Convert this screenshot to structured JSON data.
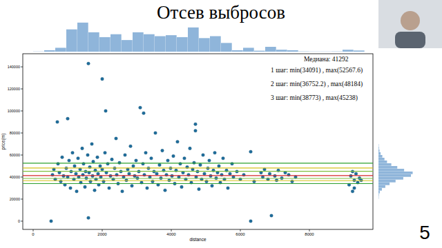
{
  "slide": {
    "number": "5"
  },
  "chart_data": {
    "type": "scatter",
    "title": "Отсев выбросов",
    "x_label": "distance",
    "y_label": "price(m)",
    "color": "#1f6d9b",
    "marker": "circle",
    "xlim": [
      -300,
      9840
    ],
    "ylim": [
      -7500,
      151900
    ],
    "xticks": [
      0,
      2000,
      4000,
      6000,
      8000
    ],
    "yticks": [
      0,
      20000,
      40000,
      60000,
      80000,
      100000,
      120000,
      140000
    ],
    "grid": false,
    "x": [
      520,
      560,
      600,
      640,
      700,
      720,
      760,
      800,
      840,
      880,
      920,
      960,
      1000,
      1000,
      1040,
      1080,
      1100,
      1140,
      1180,
      1200,
      1240,
      1260,
      1300,
      1320,
      1360,
      1380,
      1420,
      1440,
      1460,
      1500,
      1520,
      1540,
      1580,
      1600,
      1600,
      1620,
      1640,
      1660,
      1700,
      1720,
      1740,
      1780,
      1800,
      1820,
      1860,
      1880,
      1900,
      1940,
      1960,
      2000,
      2000,
      2040,
      2080,
      2100,
      2120,
      2160,
      2200,
      2240,
      2280,
      2320,
      2360,
      2400,
      2420,
      2460,
      2500,
      2540,
      2580,
      2620,
      2660,
      2700,
      2740,
      2780,
      2820,
      2860,
      2900,
      2940,
      2980,
      3020,
      3060,
      3100,
      3140,
      3180,
      3200,
      3220,
      3260,
      3300,
      3340,
      3380,
      3420,
      3460,
      3500,
      3540,
      3580,
      3620,
      3660,
      3700,
      3740,
      3780,
      3820,
      3860,
      3900,
      3940,
      3980,
      4020,
      4060,
      4100,
      4140,
      4180,
      4220,
      4260,
      4300,
      4340,
      4380,
      4420,
      4460,
      4500,
      4540,
      4580,
      4620,
      4660,
      4700,
      4700,
      4720,
      4760,
      4800,
      4840,
      4880,
      4920,
      4960,
      5020,
      5060,
      5100,
      5140,
      5180,
      5220,
      5260,
      5300,
      5340,
      5380,
      5420,
      5460,
      5500,
      5540,
      5600,
      5640,
      5700,
      5760,
      5800,
      5900,
      6000,
      6100,
      6300,
      6300,
      6400,
      6600,
      6650,
      6700,
      6800,
      6850,
      6900,
      7000,
      7050,
      7100,
      7200,
      7300,
      7400,
      7500,
      7600,
      9150,
      9200,
      9250,
      9250,
      9300,
      9300,
      9350,
      9400,
      9450,
      9500
    ],
    "values": [
      0,
      42000,
      47000,
      38000,
      90000,
      52000,
      44000,
      36000,
      58000,
      41000,
      33000,
      48000,
      93000,
      40000,
      55000,
      30000,
      45000,
      62000,
      38000,
      50000,
      43000,
      27000,
      57000,
      40000,
      47000,
      35000,
      66000,
      42000,
      52000,
      31000,
      45000,
      39000,
      60000,
      143000,
      3000,
      44000,
      49000,
      36000,
      70000,
      41000,
      54000,
      28000,
      46000,
      38000,
      58000,
      43000,
      33000,
      50000,
      40000,
      129000,
      47000,
      36000,
      62000,
      100000,
      44000,
      52000,
      30000,
      41000,
      56000,
      38000,
      48000,
      75000,
      42000,
      34000,
      53000,
      45000,
      27000,
      40000,
      60000,
      37000,
      47000,
      43000,
      68000,
      32000,
      50000,
      41000,
      55000,
      39000,
      45000,
      103000,
      35000,
      52000,
      98000,
      42000,
      62000,
      30000,
      48000,
      40000,
      57000,
      36000,
      45000,
      80000,
      43000,
      33000,
      51000,
      39000,
      64000,
      46000,
      28000,
      42000,
      55000,
      37000,
      48000,
      41000,
      59000,
      34000,
      46000,
      72000,
      40000,
      52000,
      31000,
      44000,
      57000,
      38000,
      49000,
      42000,
      66000,
      35000,
      47000,
      53000,
      88000,
      82000,
      40000,
      45000,
      29000,
      51000,
      38000,
      60000,
      43000,
      36000,
      48000,
      55000,
      41000,
      32000,
      46000,
      62000,
      39000,
      44000,
      50000,
      35000,
      42000,
      57000,
      38000,
      46000,
      30000,
      43000,
      52000,
      40000,
      45000,
      38000,
      42000,
      63000,
      0,
      36000,
      44000,
      40000,
      47000,
      38000,
      43000,
      5000,
      41000,
      37000,
      46000,
      39000,
      44000,
      42000,
      36000,
      40000,
      33000,
      41000,
      27000,
      45000,
      37000,
      30000,
      43000,
      35000,
      39000,
      37000
    ],
    "median": {
      "label": "Медиана: 41292",
      "value": 41292,
      "color": "#d62728"
    },
    "steps": [
      {
        "label": "1 шаг: min(34091) , max(52567.6)",
        "min": 34091,
        "max": 52567.6,
        "color": "#2ca02c"
      },
      {
        "label": "2 шаг: min(36752.2) , max(48184)",
        "min": 36752.2,
        "max": 48184,
        "color": "#d4c21a"
      },
      {
        "label": "3 шаг: min(38773) , max(45238)",
        "min": 38773,
        "max": 45238,
        "color": "#7fbf3f"
      }
    ],
    "x_histogram": {
      "color": "#8fb5da",
      "countlim": [
        0,
        320
      ],
      "bins": [
        0,
        320,
        640,
        960,
        1280,
        1600,
        1920,
        2240,
        2560,
        2880,
        3200,
        3520,
        3840,
        4160,
        4480,
        4800,
        5120,
        5440,
        5760,
        6080,
        6400,
        6720,
        7040,
        7360,
        7680,
        8000,
        8320,
        8640,
        8960,
        9280,
        9600
      ],
      "counts": [
        2,
        15,
        40,
        230,
        300,
        200,
        150,
        180,
        120,
        200,
        180,
        160,
        170,
        150,
        250,
        140,
        160,
        90,
        15,
        40,
        10,
        50,
        20,
        15,
        3,
        2,
        2,
        3,
        20,
        12
      ]
    },
    "y_histogram": {
      "color": "#8fb5da",
      "countlim": [
        0,
        420
      ],
      "bins": [
        20000,
        22500,
        25000,
        27500,
        30000,
        32500,
        35000,
        37500,
        40000,
        42500,
        45000,
        47500,
        50000,
        52500,
        55000,
        57500,
        60000,
        62500,
        65000,
        67500,
        70000
      ],
      "counts": [
        3,
        5,
        15,
        40,
        80,
        130,
        200,
        290,
        380,
        400,
        300,
        220,
        150,
        100,
        70,
        45,
        25,
        12,
        6,
        3
      ]
    }
  }
}
